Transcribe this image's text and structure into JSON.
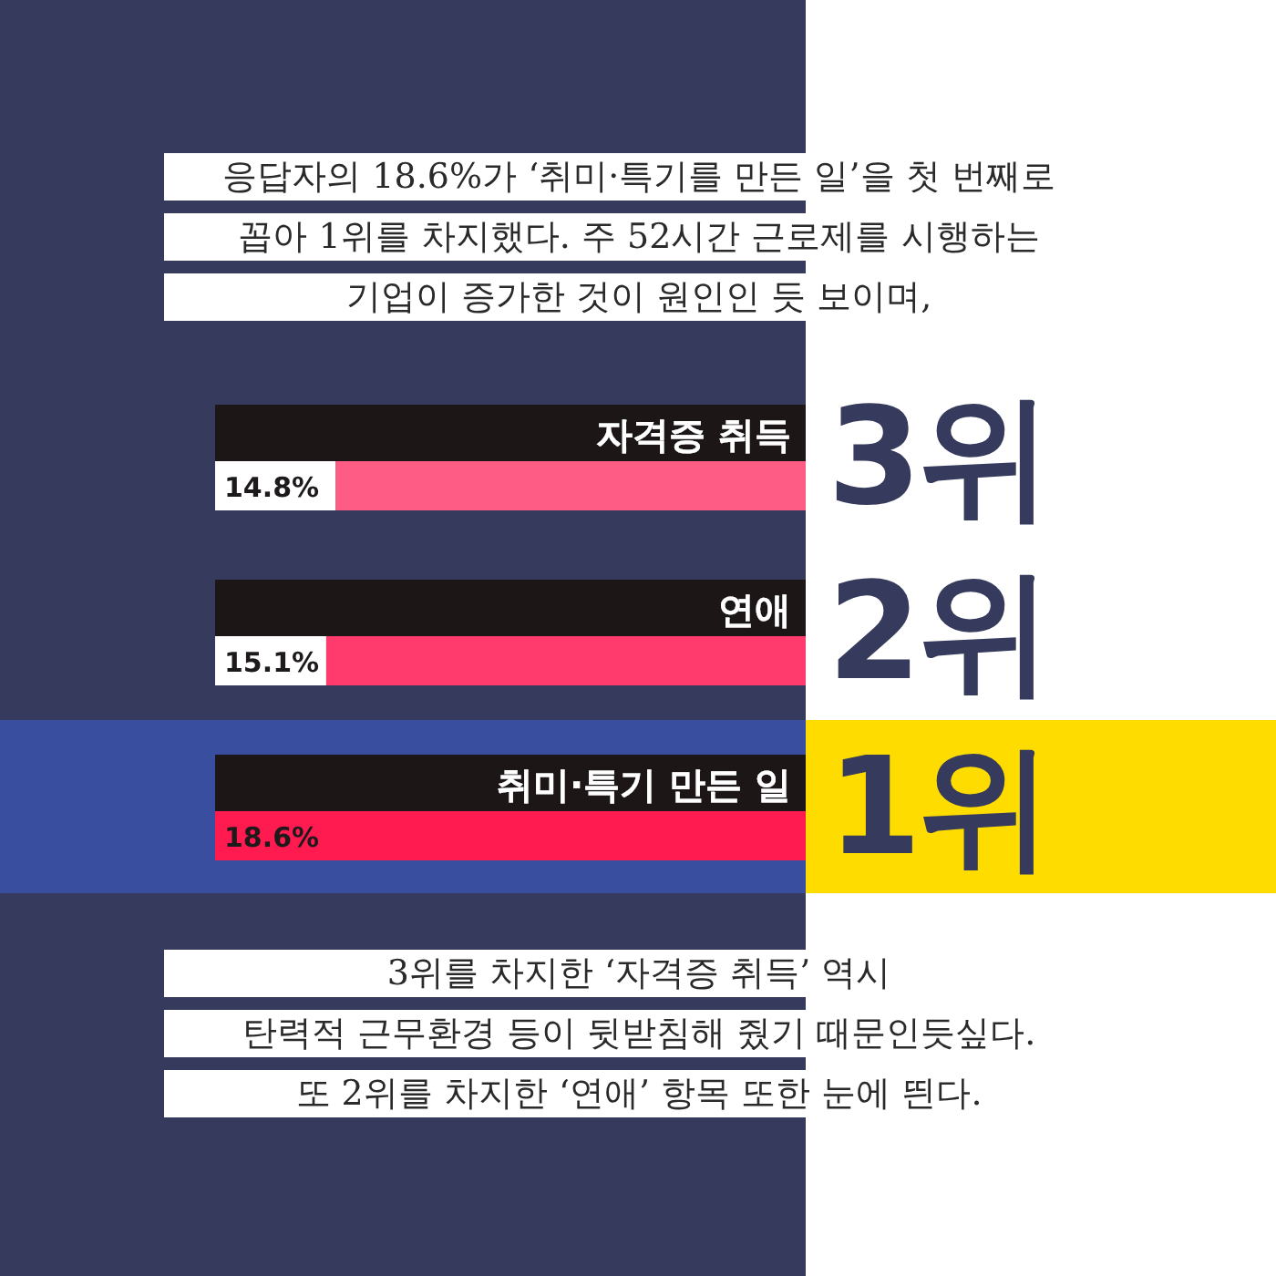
{
  "chart_data": {
    "type": "bar",
    "orientation": "horizontal",
    "title": "응답자의 18.6%가 ‘취미·특기를 만든 일’을 첫 번째로\n꼽아 1위를 차지했다. 주 52시간 근로제를 시행하는\n기업이 증가한 것이 원인인 듯 보이며,",
    "categories": [
      "자격증 취득",
      "연애",
      "취미·특기 만든 일"
    ],
    "values": [
      14.8,
      15.1,
      18.6
    ],
    "colors": [
      "#ff5c85",
      "#ff3a6c",
      "#ff1a50"
    ],
    "value_labels": [
      "14.8%",
      "15.1%",
      "18.6%"
    ],
    "xlim": [
      18.6,
      0
    ],
    "tick_labels": "y",
    "bands": [
      {
        "axis": "y",
        "from": "취미·특기 만든 일",
        "to": "취미·특기 만든 일",
        "color": "#3a4e9f"
      }
    ],
    "annotations": [
      "3위",
      "2위",
      "1위",
      "3위를 차지한 ‘자격증 취득’ 역시\n탄력적 근무환경 등이 뒷받침해 줬기 때문인듯싶다.\n또 2위를 차지한 ‘연애’ 항목 또한 눈에 띈다."
    ]
  }
}
